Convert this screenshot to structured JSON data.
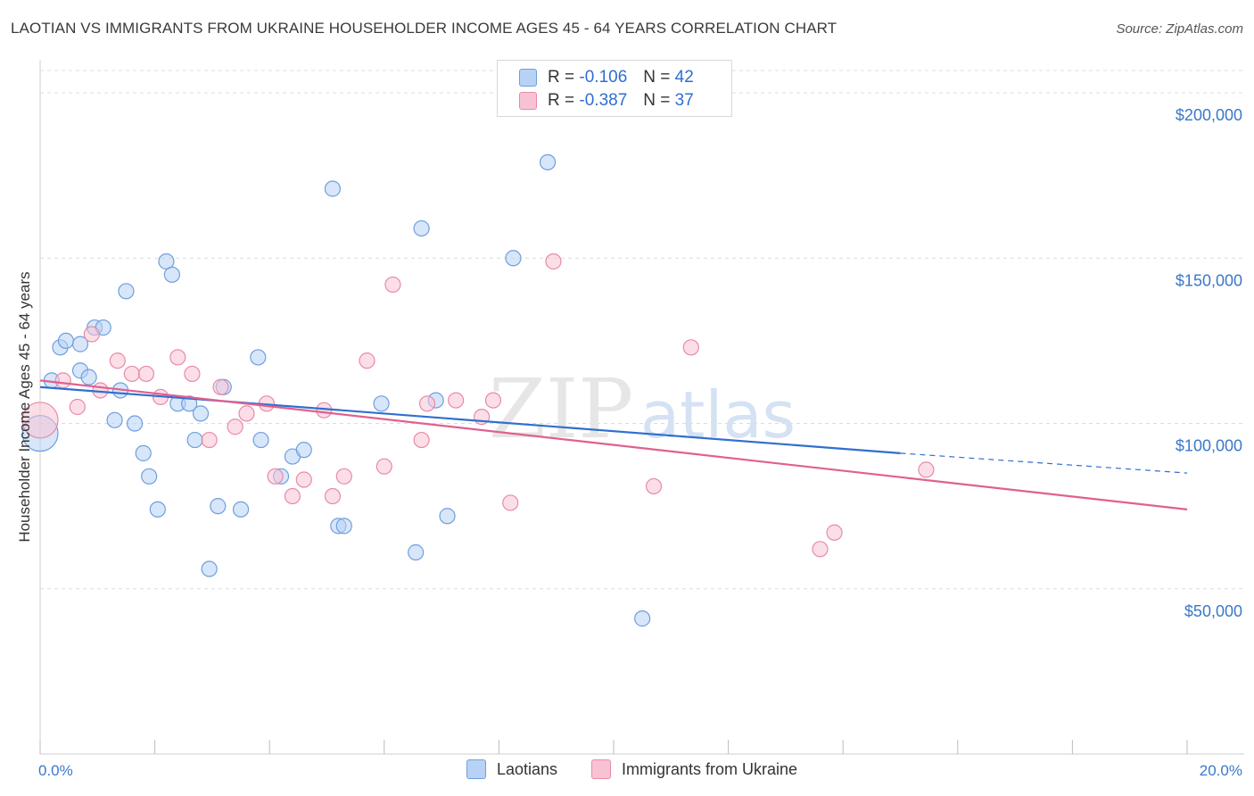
{
  "title": "LAOTIAN VS IMMIGRANTS FROM UKRAINE HOUSEHOLDER INCOME AGES 45 - 64 YEARS CORRELATION CHART",
  "source": "Source: ZipAtlas.com",
  "watermark": {
    "zip": "ZIP",
    "atlas": "atlas"
  },
  "legend": {
    "rows": [
      {
        "r_label": "R =",
        "r_value": "-0.106",
        "n_label": "N =",
        "n_value": "42"
      },
      {
        "r_label": "R =",
        "r_value": "-0.387",
        "n_label": "N =",
        "n_value": "37"
      }
    ]
  },
  "colors": {
    "laotians_fill": "#b8d2f5",
    "laotians_stroke": "#6e9fdc",
    "laotians_line": "#2f6fcf",
    "ukraine_fill": "#f9c2d3",
    "ukraine_stroke": "#e88aa8",
    "ukraine_line": "#e0608f",
    "grid": "#dcdcdc",
    "axis_text": "#3a78c9"
  },
  "chart_data": {
    "type": "scatter",
    "title": "LAOTIAN VS IMMIGRANTS FROM UKRAINE HOUSEHOLDER INCOME AGES 45 - 64 YEARS CORRELATION CHART",
    "xlabel": "",
    "ylabel": "Householder Income Ages 45 - 64 years",
    "xlim": [
      0,
      20
    ],
    "ylim": [
      0,
      210000
    ],
    "x_tick_labels": [
      "0.0%",
      "20.0%"
    ],
    "y_ticks": [
      50000,
      100000,
      150000,
      200000
    ],
    "y_tick_labels": [
      "$50,000",
      "$100,000",
      "$150,000",
      "$200,000"
    ],
    "grid": true,
    "legend_position": "top-center",
    "series": [
      {
        "name": "Laotians",
        "points": [
          [
            0.0,
            97000
          ],
          [
            0.2,
            113000
          ],
          [
            0.35,
            123000
          ],
          [
            0.45,
            125000
          ],
          [
            0.7,
            124000
          ],
          [
            0.7,
            116000
          ],
          [
            0.85,
            114000
          ],
          [
            0.95,
            129000
          ],
          [
            1.1,
            129000
          ],
          [
            1.3,
            101000
          ],
          [
            1.4,
            110000
          ],
          [
            1.5,
            140000
          ],
          [
            1.65,
            100000
          ],
          [
            1.8,
            91000
          ],
          [
            1.9,
            84000
          ],
          [
            2.05,
            74000
          ],
          [
            2.2,
            149000
          ],
          [
            2.3,
            145000
          ],
          [
            2.4,
            106000
          ],
          [
            2.6,
            106000
          ],
          [
            2.7,
            95000
          ],
          [
            2.8,
            103000
          ],
          [
            2.95,
            56000
          ],
          [
            3.1,
            75000
          ],
          [
            3.2,
            111000
          ],
          [
            3.5,
            74000
          ],
          [
            3.8,
            120000
          ],
          [
            3.85,
            95000
          ],
          [
            4.2,
            84000
          ],
          [
            4.4,
            90000
          ],
          [
            4.6,
            92000
          ],
          [
            5.1,
            171000
          ],
          [
            5.2,
            69000
          ],
          [
            5.3,
            69000
          ],
          [
            5.95,
            106000
          ],
          [
            6.55,
            61000
          ],
          [
            6.65,
            159000
          ],
          [
            6.9,
            107000
          ],
          [
            7.1,
            72000
          ],
          [
            8.25,
            150000
          ],
          [
            8.85,
            179000
          ],
          [
            10.5,
            41000
          ]
        ]
      },
      {
        "name": "Immigrants from Ukraine",
        "points": [
          [
            0.0,
            101000
          ],
          [
            0.4,
            113000
          ],
          [
            0.65,
            105000
          ],
          [
            0.9,
            127000
          ],
          [
            1.05,
            110000
          ],
          [
            1.35,
            119000
          ],
          [
            1.6,
            115000
          ],
          [
            1.85,
            115000
          ],
          [
            2.1,
            108000
          ],
          [
            2.4,
            120000
          ],
          [
            2.65,
            115000
          ],
          [
            2.95,
            95000
          ],
          [
            3.15,
            111000
          ],
          [
            3.4,
            99000
          ],
          [
            3.6,
            103000
          ],
          [
            3.95,
            106000
          ],
          [
            4.1,
            84000
          ],
          [
            4.4,
            78000
          ],
          [
            4.6,
            83000
          ],
          [
            4.95,
            104000
          ],
          [
            5.1,
            78000
          ],
          [
            5.3,
            84000
          ],
          [
            5.7,
            119000
          ],
          [
            6.0,
            87000
          ],
          [
            6.15,
            142000
          ],
          [
            6.65,
            95000
          ],
          [
            6.75,
            106000
          ],
          [
            7.25,
            107000
          ],
          [
            7.7,
            102000
          ],
          [
            7.9,
            107000
          ],
          [
            8.2,
            76000
          ],
          [
            8.95,
            149000
          ],
          [
            10.7,
            81000
          ],
          [
            11.35,
            123000
          ],
          [
            13.6,
            62000
          ],
          [
            13.85,
            67000
          ],
          [
            15.45,
            86000
          ]
        ]
      }
    ],
    "trendlines": [
      {
        "series": "Laotians",
        "x": [
          0,
          15
        ],
        "y": [
          111000,
          91000
        ],
        "dashed_extension_to": [
          20,
          85000
        ]
      },
      {
        "series": "Immigrants from Ukraine",
        "x": [
          0,
          20
        ],
        "y": [
          113000,
          74000
        ]
      }
    ]
  }
}
